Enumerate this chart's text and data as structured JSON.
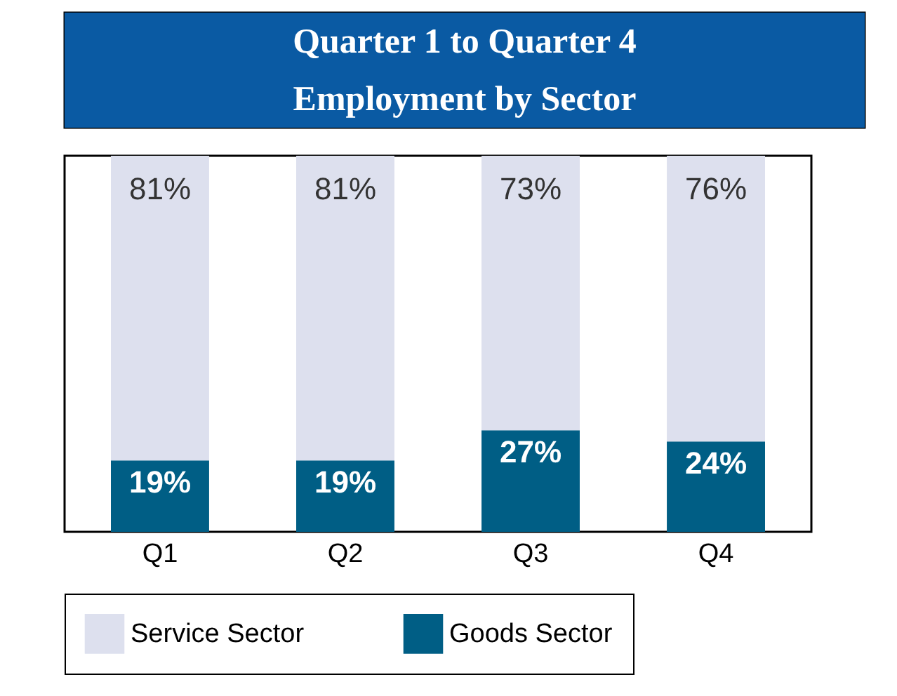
{
  "chart_data": {
    "type": "bar",
    "title": "Quarter 1 to Quarter 4 Employment by Sector",
    "categories": [
      "Q1",
      "Q2",
      "Q3",
      "Q4"
    ],
    "stacked": true,
    "legend": "bottom",
    "series": [
      {
        "name": "Goods Sector",
        "color": "#005e85",
        "values": [
          19,
          19,
          27,
          24
        ],
        "value_labels": [
          "19%",
          "19%",
          "27%",
          "24%"
        ]
      },
      {
        "name": "Service Sector",
        "color": "#dde0ee",
        "values": [
          81,
          81,
          73,
          76
        ],
        "value_labels": [
          "81%",
          "81%",
          "73%",
          "76%"
        ]
      }
    ]
  }
}
